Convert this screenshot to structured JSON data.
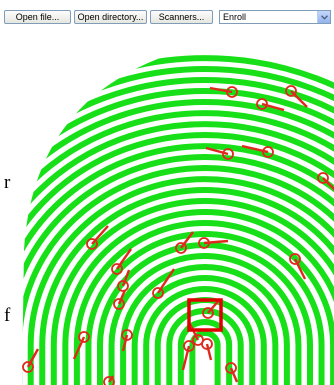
{
  "toolbar": {
    "open_file": "Open file...",
    "open_directory": "Open directory...",
    "scanners": "Scanners...",
    "mode_select": "Enroll"
  },
  "side_text": {
    "line1": "r",
    "line2": "f"
  },
  "colors": {
    "ridge": "#18e018",
    "minutia": "#e0281c",
    "highlight": "#e00000"
  },
  "icons": {
    "dropdown": "chevron-down-icon"
  }
}
